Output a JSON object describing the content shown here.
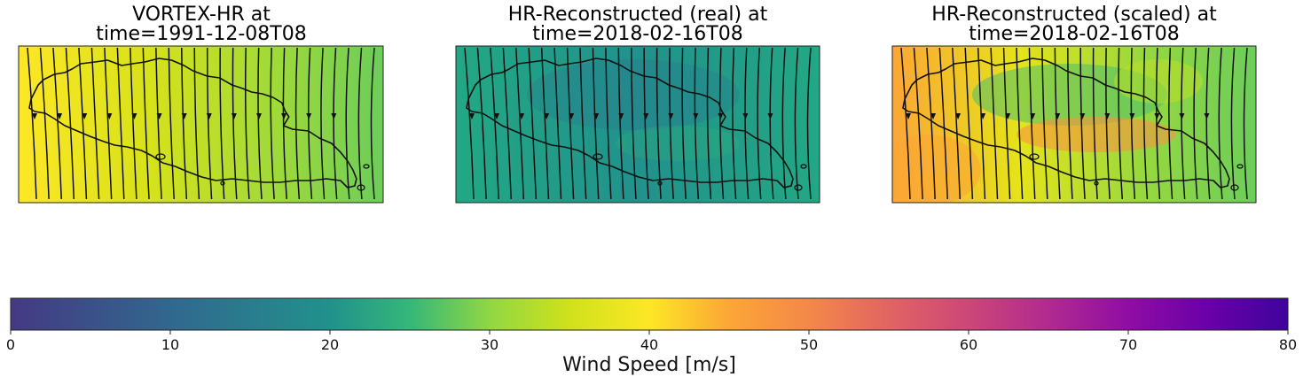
{
  "chart_data": [
    {
      "type": "heatmap",
      "title_line1": "VORTEX-HR at",
      "title_line2": "time=1991-12-08T08",
      "fill": {
        "stops": [
          {
            "offset": 0.0,
            "color": "#fde725"
          },
          {
            "offset": 0.35,
            "color": "#d8e219"
          },
          {
            "offset": 0.7,
            "color": "#a0da39"
          },
          {
            "offset": 1.0,
            "color": "#6ccd5a"
          }
        ],
        "approx_wind_speed_range": [
          40,
          30
        ]
      },
      "streamline_direction": "south"
    },
    {
      "type": "heatmap",
      "title_line1": "HR-Reconstructed (real) at",
      "title_line2": "time=2018-02-16T08",
      "fill": {
        "stops": [
          {
            "offset": 0.0,
            "color": "#22a884"
          },
          {
            "offset": 0.5,
            "color": "#21918c"
          },
          {
            "offset": 1.0,
            "color": "#22a884"
          }
        ],
        "approx_wind_speed_range": [
          18,
          22
        ]
      },
      "streamline_direction": "south"
    },
    {
      "type": "heatmap",
      "title_line1": "HR-Reconstructed (scaled) at",
      "title_line2": "time=2018-02-16T08",
      "fill": {
        "stops": [
          {
            "offset": 0.0,
            "color": "#fca636"
          },
          {
            "offset": 0.35,
            "color": "#e5e419"
          },
          {
            "offset": 0.7,
            "color": "#95d840"
          },
          {
            "offset": 1.0,
            "color": "#6ccd5a"
          }
        ],
        "approx_wind_speed_range": [
          45,
          30
        ]
      },
      "streamline_direction": "south"
    }
  ],
  "colorbar": {
    "colormap": "plasma_r + viridis",
    "stops": [
      {
        "value": 0,
        "color": "#443983"
      },
      {
        "value": 10,
        "color": "#31688e"
      },
      {
        "value": 20,
        "color": "#21918c"
      },
      {
        "value": 25,
        "color": "#35b779"
      },
      {
        "value": 30,
        "color": "#90d743"
      },
      {
        "value": 35,
        "color": "#d0e11c"
      },
      {
        "value": 40,
        "color": "#fde725"
      },
      {
        "value": 45,
        "color": "#fca636"
      },
      {
        "value": 50,
        "color": "#f48849"
      },
      {
        "value": 55,
        "color": "#e16462"
      },
      {
        "value": 60,
        "color": "#cc4778"
      },
      {
        "value": 65,
        "color": "#b12a90"
      },
      {
        "value": 70,
        "color": "#8f0da4"
      },
      {
        "value": 75,
        "color": "#6a00a8"
      },
      {
        "value": 80,
        "color": "#3d049b"
      }
    ],
    "range": [
      0,
      80
    ],
    "ticks": [
      "0",
      "10",
      "20",
      "30",
      "40",
      "50",
      "60",
      "70",
      "80"
    ],
    "label": "Wind Speed [m/s]"
  }
}
